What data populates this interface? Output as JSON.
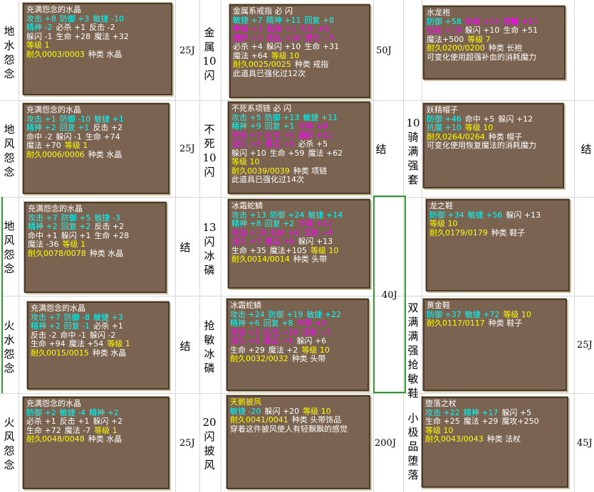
{
  "rows": [
    {
      "name1": "地水怨念",
      "price1": "25J",
      "card1": {
        "lines": [
          [
            {
              "t": "充满怨念的水晶",
              "c": "w"
            }
          ],
          [
            {
              "t": "攻击 +8",
              "c": "c"
            },
            {
              "t": "防御 +3",
              "c": "c"
            },
            {
              "t": "敏捷 -10",
              "c": "c"
            }
          ],
          [
            {
              "t": "精神 -2",
              "c": "c"
            },
            {
              "t": "必杀 +1",
              "c": "w"
            },
            {
              "t": "反击 -2",
              "c": "w"
            }
          ],
          [
            {
              "t": "躲闪 -1",
              "c": "w"
            },
            {
              "t": "生命 +28",
              "c": "w"
            },
            {
              "t": "魔法 +32",
              "c": "w"
            }
          ],
          [
            {
              "t": "等级 1",
              "c": "y"
            }
          ],
          [
            {
              "t": "耐久0003/0003",
              "c": "y"
            },
            {
              "t": "种类 水晶",
              "c": "w"
            }
          ]
        ]
      },
      "name2": "金属10闪",
      "price2": "50J",
      "card2": {
        "lines": [
          [
            {
              "t": "金属系戒指 必 闪",
              "c": "w"
            }
          ],
          [
            {
              "t": "敏捷 +7",
              "c": "c"
            },
            {
              "t": "精神 +11",
              "c": "c"
            },
            {
              "t": "回复 +8",
              "c": "c"
            }
          ],
          [
            {
              "t": "中毒 +3",
              "c": "m"
            },
            {
              "t": "昏睡 +3",
              "c": "m"
            },
            {
              "t": "石化 +5",
              "c": "m"
            }
          ],
          [
            {
              "t": "酒醉 +5",
              "c": "m"
            },
            {
              "t": "混乱 +10",
              "c": "m"
            },
            {
              "t": "遗忘 +8",
              "c": "m"
            }
          ],
          [
            {
              "t": "必杀 +4",
              "c": "w"
            },
            {
              "t": "躲闪 +10",
              "c": "w"
            },
            {
              "t": "生命 +31",
              "c": "w"
            }
          ],
          [
            {
              "t": "魔法 +64",
              "c": "w"
            },
            {
              "t": "等级 10",
              "c": "y"
            }
          ],
          [
            {
              "t": "耐久0025/0025",
              "c": "y"
            },
            {
              "t": "种类 戒指",
              "c": "w"
            }
          ],
          [
            {
              "t": "此道具已强化过12次",
              "c": "w"
            }
          ]
        ]
      },
      "card3": {
        "lines": [
          [
            {
              "t": "水龙袍",
              "c": "w"
            }
          ],
          [
            {
              "t": "防御 +58",
              "c": "c"
            },
            {
              "t": "中毒 +10",
              "c": "m"
            },
            {
              "t": "昏睡 +10",
              "c": "m"
            }
          ],
          [
            {
              "t": "石化 +10",
              "c": "m"
            },
            {
              "t": "躲闪 +10",
              "c": "w"
            },
            {
              "t": "生命 +51",
              "c": "w"
            }
          ],
          [
            {
              "t": "魔法+500",
              "c": "w"
            },
            {
              "t": "等级 7",
              "c": "y"
            }
          ],
          [
            {
              "t": "耐久0200/0200",
              "c": "y"
            },
            {
              "t": "种类 长袍",
              "c": "w"
            }
          ],
          [
            {
              "t": "可变化使用超强补血的消耗魔力",
              "c": "w"
            }
          ]
        ]
      }
    },
    {
      "name1": "地风怨念",
      "price1": "25J",
      "card1": {
        "lines": [
          [
            {
              "t": "充满怨念的水晶",
              "c": "w"
            }
          ],
          [
            {
              "t": "攻击 +1",
              "c": "c"
            },
            {
              "t": "防御 -10",
              "c": "c"
            },
            {
              "t": "敏捷 +1",
              "c": "c"
            }
          ],
          [
            {
              "t": "精神 +2",
              "c": "c"
            },
            {
              "t": "回复 +1",
              "c": "c"
            },
            {
              "t": "反击 +2",
              "c": "w"
            }
          ],
          [
            {
              "t": "命中 -2",
              "c": "w"
            },
            {
              "t": "躲闪 -1",
              "c": "w"
            },
            {
              "t": "生命 +74",
              "c": "w"
            }
          ],
          [
            {
              "t": "魔法 +70",
              "c": "w"
            },
            {
              "t": "等级 1",
              "c": "y"
            }
          ],
          [
            {
              "t": "耐久0006/0006",
              "c": "y"
            },
            {
              "t": "种类 水晶",
              "c": "w"
            }
          ]
        ]
      },
      "name2": "不死10闪",
      "price2": "结",
      "card2": {
        "lines": [
          [
            {
              "t": "不死系项链 必 闪",
              "c": "w"
            }
          ],
          [
            {
              "t": "攻击 +5",
              "c": "c"
            },
            {
              "t": "防御 +13",
              "c": "c"
            },
            {
              "t": "敏捷 +11",
              "c": "c"
            }
          ],
          [
            {
              "t": "精神 +9",
              "c": "c"
            },
            {
              "t": "回复 +1",
              "c": "c"
            },
            {
              "t": "中毒 +8",
              "c": "m"
            }
          ],
          [
            {
              "t": "昏睡 +7",
              "c": "m"
            },
            {
              "t": "石化 +5",
              "c": "m"
            },
            {
              "t": "酒醉 +10",
              "c": "m"
            }
          ],
          [
            {
              "t": "混乱 +8",
              "c": "m"
            },
            {
              "t": "遗忘 +6",
              "c": "m"
            },
            {
              "t": "必杀 +5",
              "c": "w"
            }
          ],
          [
            {
              "t": "躲闪 +10",
              "c": "w"
            },
            {
              "t": "生命 +59",
              "c": "w"
            },
            {
              "t": "魔法 +62",
              "c": "w"
            }
          ],
          [
            {
              "t": "等级 10",
              "c": "y"
            }
          ],
          [
            {
              "t": "耐久0039/0039",
              "c": "y"
            },
            {
              "t": "种类 项链",
              "c": "w"
            }
          ],
          [
            {
              "t": "此道具已强化过14次",
              "c": "w"
            }
          ]
        ]
      },
      "name3": "10骑满强套",
      "price3": "结",
      "card3": {
        "lines": [
          [
            {
              "t": "妖精帽子",
              "c": "w"
            }
          ],
          [
            {
              "t": "防御 +46",
              "c": "c"
            },
            {
              "t": "命中 +5",
              "c": "w"
            },
            {
              "t": "躲闪 +12",
              "c": "w"
            }
          ],
          [
            {
              "t": "抗魔 +10",
              "c": "c"
            },
            {
              "t": "等级 10",
              "c": "y"
            }
          ],
          [
            {
              "t": "耐久0264/0264",
              "c": "y"
            },
            {
              "t": "种类 帽子",
              "c": "w"
            }
          ],
          [
            {
              "t": "可变化使用恢复魔法的消耗魔力",
              "c": "w"
            }
          ]
        ]
      }
    },
    {
      "name1": "地风怨念",
      "price1": "结",
      "card1": {
        "lines": [
          [
            {
              "t": "充满怨念的水晶",
              "c": "w"
            }
          ],
          [
            {
              "t": "攻击 +7",
              "c": "c"
            },
            {
              "t": "防御 +5",
              "c": "c"
            },
            {
              "t": "敏捷 -3",
              "c": "c"
            }
          ],
          [
            {
              "t": "精神 +2",
              "c": "c"
            },
            {
              "t": "回复 +2",
              "c": "c"
            },
            {
              "t": "反击 +2",
              "c": "w"
            }
          ],
          [
            {
              "t": "命中 +1",
              "c": "w"
            },
            {
              "t": "躲闪 +1",
              "c": "w"
            },
            {
              "t": "生命 +28",
              "c": "w"
            }
          ],
          [
            {
              "t": "魔法 -36",
              "c": "w"
            },
            {
              "t": "等级 1",
              "c": "y"
            }
          ],
          [
            {
              "t": "耐久0078/0078",
              "c": "y"
            },
            {
              "t": "种类 水晶",
              "c": "w"
            }
          ]
        ]
      },
      "name2": "13闪冰磷",
      "card2": {
        "lines": [
          [
            {
              "t": "冰霜蛇鳞",
              "c": "w"
            }
          ],
          [
            {
              "t": "攻击 +13",
              "c": "c"
            },
            {
              "t": "防御 +24",
              "c": "c"
            },
            {
              "t": "敏捷 +14",
              "c": "c"
            }
          ],
          [
            {
              "t": "精神 +8",
              "c": "c"
            },
            {
              "t": "回复 +2",
              "c": "c"
            },
            {
              "t": "中毒 +10",
              "c": "m"
            }
          ],
          [
            {
              "t": "昏睡 +10",
              "c": "m"
            },
            {
              "t": "石化 +6",
              "c": "m"
            },
            {
              "t": "酒醉 +4",
              "c": "m"
            }
          ],
          [
            {
              "t": "混乱 +7",
              "c": "m"
            },
            {
              "t": "遗忘 +6",
              "c": "m"
            },
            {
              "t": "躲闪 +13",
              "c": "w"
            }
          ],
          [
            {
              "t": "生命 +35",
              "c": "w"
            },
            {
              "t": "魔法+105",
              "c": "w"
            },
            {
              "t": "等级 10",
              "c": "y"
            }
          ],
          [
            {
              "t": "耐久0014/0014",
              "c": "y"
            },
            {
              "t": "种类 头带",
              "c": "w"
            }
          ]
        ]
      },
      "card3": {
        "lines": [
          [
            {
              "t": "龙之鞋",
              "c": "w"
            }
          ],
          [
            {
              "t": "防御 +34",
              "c": "c"
            },
            {
              "t": "敏捷 +56",
              "c": "c"
            },
            {
              "t": "躲闪 +13",
              "c": "w"
            }
          ],
          [
            {
              "t": "等级 10",
              "c": "y"
            }
          ],
          [
            {
              "t": "耐久0179/0179",
              "c": "y"
            },
            {
              "t": "种类 鞋子",
              "c": "w"
            }
          ]
        ]
      }
    },
    {
      "name1": "火水怨念",
      "price1": "结",
      "card1": {
        "lines": [
          [
            {
              "t": "充满怨念的水晶",
              "c": "w"
            }
          ],
          [
            {
              "t": "攻击 +7",
              "c": "c"
            },
            {
              "t": "防御 -8",
              "c": "c"
            },
            {
              "t": "敏捷 +3",
              "c": "c"
            }
          ],
          [
            {
              "t": "精神 +2",
              "c": "c"
            },
            {
              "t": "回复 -1",
              "c": "c"
            },
            {
              "t": "必杀 +1",
              "c": "w"
            }
          ],
          [
            {
              "t": "反击 -2",
              "c": "w"
            },
            {
              "t": "命中 -1",
              "c": "w"
            },
            {
              "t": "躲闪 -2",
              "c": "w"
            }
          ],
          [
            {
              "t": "生命 +94",
              "c": "w"
            },
            {
              "t": "魔法 +54",
              "c": "w"
            },
            {
              "t": "等级 1",
              "c": "y"
            }
          ],
          [
            {
              "t": "耐久0015/0015",
              "c": "y"
            },
            {
              "t": "种类 水晶",
              "c": "w"
            }
          ]
        ]
      },
      "name2": "抢敏冰磷",
      "card2": {
        "lines": [
          [
            {
              "t": "冰霜蛇鳞",
              "c": "w"
            }
          ],
          [
            {
              "t": "攻击 +24",
              "c": "c"
            },
            {
              "t": "防御 +19",
              "c": "c"
            },
            {
              "t": "敏捷 +22",
              "c": "c"
            }
          ],
          [
            {
              "t": "精神 +6",
              "c": "c"
            },
            {
              "t": "回复 +8",
              "c": "c"
            },
            {
              "t": "中毒 +2",
              "c": "m"
            }
          ],
          [
            {
              "t": "昏睡 +2",
              "c": "m"
            },
            {
              "t": "石化 +10",
              "c": "m"
            },
            {
              "t": "酒醉 +5",
              "c": "m"
            }
          ],
          [
            {
              "t": "混乱 +6",
              "c": "m"
            },
            {
              "t": "遗忘 +4",
              "c": "m"
            },
            {
              "t": "躲闪 +6",
              "c": "w"
            }
          ],
          [
            {
              "t": "生命 +29",
              "c": "w"
            },
            {
              "t": "魔法 +2",
              "c": "w"
            },
            {
              "t": "等级 10",
              "c": "y"
            }
          ],
          [
            {
              "t": "耐久0032/0032",
              "c": "y"
            },
            {
              "t": "种类 头带",
              "c": "w"
            }
          ]
        ]
      },
      "name3": "双满满强抢敏鞋",
      "price3": "25J",
      "card3": {
        "lines": [
          [
            {
              "t": "黄金鞋",
              "c": "w"
            }
          ],
          [
            {
              "t": "防御 +37",
              "c": "c"
            },
            {
              "t": "敏捷 +72",
              "c": "c"
            },
            {
              "t": "等级 10",
              "c": "y"
            }
          ],
          [
            {
              "t": "耐久0117/0117",
              "c": "y"
            },
            {
              "t": "种类 鞋子",
              "c": "w"
            }
          ]
        ]
      }
    },
    {
      "name1": "火风怨念",
      "price1": "25J",
      "card1": {
        "lines": [
          [
            {
              "t": "充满怨念的水晶",
              "c": "w"
            }
          ],
          [
            {
              "t": "防御 +2",
              "c": "c"
            },
            {
              "t": "敏捷 -4",
              "c": "c"
            },
            {
              "t": "精神 +2",
              "c": "c"
            }
          ],
          [
            {
              "t": "必杀 +1",
              "c": "w"
            },
            {
              "t": "反击 +1",
              "c": "w"
            },
            {
              "t": "躲闪 +2",
              "c": "w"
            }
          ],
          [
            {
              "t": "生命 +72",
              "c": "w"
            },
            {
              "t": "魔法 -7",
              "c": "w"
            },
            {
              "t": "等级 1",
              "c": "y"
            }
          ],
          [
            {
              "t": "耐久0048/0048",
              "c": "y"
            },
            {
              "t": "种类 水晶",
              "c": "w"
            }
          ]
        ]
      },
      "name2": "20闪披风",
      "price2": "200J",
      "card2": {
        "lines": [
          [
            {
              "t": "天鹅披风",
              "c": "y"
            }
          ],
          [
            {
              "t": "敏捷 -20",
              "c": "c"
            },
            {
              "t": "躲闪 +20",
              "c": "w"
            },
            {
              "t": "等级 10",
              "c": "y"
            }
          ],
          [
            {
              "t": "耐久0041/0041",
              "c": "y"
            },
            {
              "t": "种类 头带饰品",
              "c": "w"
            }
          ],
          [
            {
              "t": "穿着这件披风使人有轻飘飘的感觉",
              "c": "w"
            }
          ]
        ]
      },
      "name3": "小极品堕落",
      "price3": "45J",
      "card3": {
        "lines": [
          [
            {
              "t": "堕落之杖",
              "c": "w"
            }
          ],
          [
            {
              "t": "攻击 +22",
              "c": "c"
            },
            {
              "t": "精神 +17",
              "c": "c"
            },
            {
              "t": "躲闪 +5",
              "c": "w"
            }
          ],
          [
            {
              "t": "生命 +25",
              "c": "w"
            },
            {
              "t": "魔法 +29",
              "c": "w"
            },
            {
              "t": "魔攻+250",
              "c": "w"
            }
          ],
          [
            {
              "t": "等级 10",
              "c": "y"
            }
          ],
          [
            {
              "t": "耐久0043/0043",
              "c": "y"
            },
            {
              "t": "种类 法杖",
              "c": "w"
            }
          ]
        ]
      }
    }
  ],
  "merged_price": "40J"
}
